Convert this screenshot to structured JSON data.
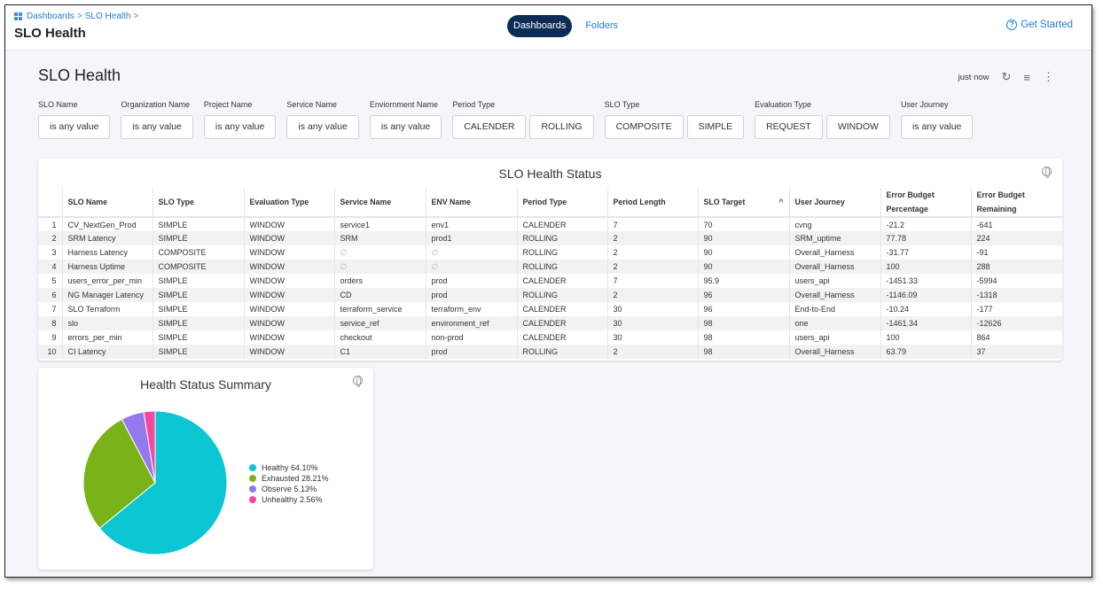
{
  "breadcrumb": [
    "Dashboards",
    "SLO Health"
  ],
  "header": {
    "title": "SLO Health",
    "tabs": [
      {
        "label": "Dashboards",
        "active": true
      },
      {
        "label": "Folders",
        "active": false
      }
    ],
    "get_started": "Get Started"
  },
  "dashboard": {
    "title": "SLO Health",
    "last_refreshed": "just now"
  },
  "filters": [
    {
      "label": "SLO Name",
      "options": [
        "is any value"
      ]
    },
    {
      "label": "Organization Name",
      "options": [
        "is any value"
      ]
    },
    {
      "label": "Project Name",
      "options": [
        "is any value"
      ]
    },
    {
      "label": "Service Name",
      "options": [
        "is any value"
      ]
    },
    {
      "label": "Enviornment Name",
      "options": [
        "is any value"
      ]
    },
    {
      "label": "Period Type",
      "options": [
        "CALENDER",
        "ROLLING"
      ]
    },
    {
      "label": "SLO Type",
      "options": [
        "COMPOSITE",
        "SIMPLE"
      ]
    },
    {
      "label": "Evaluation Type",
      "options": [
        "REQUEST",
        "WINDOW"
      ]
    },
    {
      "label": "User Journey",
      "options": [
        "is any value"
      ]
    }
  ],
  "table": {
    "title": "SLO Health Status",
    "columns": [
      "SLO Name",
      "SLO Type",
      "Evaluation Type",
      "Service Name",
      "ENV Name",
      "Period Type",
      "Period Length",
      "SLO Target",
      "User Journey",
      "Error Budget Percentage",
      "Error Budget Remaining"
    ],
    "rows": [
      [
        "1",
        "CV_NextGen_Prod",
        "SIMPLE",
        "WINDOW",
        "service1",
        "env1",
        "CALENDER",
        "7",
        "70",
        "cvng",
        "-21.2",
        "-641"
      ],
      [
        "2",
        "SRM Latency",
        "SIMPLE",
        "WINDOW",
        "SRM",
        "prod1",
        "ROLLING",
        "2",
        "90",
        "SRM_uptime",
        "77.78",
        "224"
      ],
      [
        "3",
        "Harness Latency",
        "COMPOSITE",
        "WINDOW",
        "∅",
        "∅",
        "ROLLING",
        "2",
        "90",
        "Overall_Harness",
        "-31.77",
        "-91"
      ],
      [
        "4",
        "Harness Uptime",
        "COMPOSITE",
        "WINDOW",
        "∅",
        "∅",
        "ROLLING",
        "2",
        "90",
        "Overall_Harness",
        "100",
        "288"
      ],
      [
        "5",
        "users_error_per_min",
        "SIMPLE",
        "WINDOW",
        "orders",
        "prod",
        "CALENDER",
        "7",
        "95.9",
        "users_api",
        "-1451.33",
        "-5994"
      ],
      [
        "6",
        "NG Manager Latency",
        "SIMPLE",
        "WINDOW",
        "CD",
        "prod",
        "ROLLING",
        "2",
        "96",
        "Overall_Harness",
        "-1146.09",
        "-1318"
      ],
      [
        "7",
        "SLO Terraform",
        "SIMPLE",
        "WINDOW",
        "terraform_service",
        "terraform_env",
        "CALENDER",
        "30",
        "96",
        "End-to-End",
        "-10.24",
        "-177"
      ],
      [
        "8",
        "slo",
        "SIMPLE",
        "WINDOW",
        "service_ref",
        "environment_ref",
        "CALENDER",
        "30",
        "98",
        "one",
        "-1461.34",
        "-12626"
      ],
      [
        "9",
        "errors_per_min",
        "SIMPLE",
        "WINDOW",
        "checkout",
        "non-prod",
        "CALENDER",
        "30",
        "98",
        "users_api",
        "100",
        "864"
      ],
      [
        "10",
        "CI Latency",
        "SIMPLE",
        "WINDOW",
        "C1",
        "prod",
        "ROLLING",
        "2",
        "98",
        "Overall_Harness",
        "63.79",
        "37"
      ]
    ]
  },
  "chart_data": {
    "type": "pie",
    "title": "Health Status Summary",
    "legend_position": "right",
    "slices": [
      {
        "label": "Healthy 64.10%",
        "name": "Healthy",
        "value": 64.1,
        "color": "#0cc6d3"
      },
      {
        "label": "Exhausted 28.21%",
        "name": "Exhausted",
        "value": 28.21,
        "color": "#7ab317"
      },
      {
        "label": "Observe 5.13%",
        "name": "Observe",
        "value": 5.13,
        "color": "#9479ee"
      },
      {
        "label": "Unhealthy 2.56%",
        "name": "Unhealthy",
        "value": 2.56,
        "color": "#f2489d"
      }
    ]
  }
}
